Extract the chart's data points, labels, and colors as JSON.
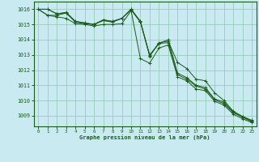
{
  "xlabel": "Graphe pression niveau de la mer (hPa)",
  "xlim": [
    -0.5,
    23.5
  ],
  "ylim": [
    1008.3,
    1016.5
  ],
  "yticks": [
    1009,
    1010,
    1011,
    1012,
    1013,
    1014,
    1015,
    1016
  ],
  "xticks": [
    0,
    1,
    2,
    3,
    4,
    5,
    6,
    7,
    8,
    9,
    10,
    11,
    12,
    13,
    14,
    15,
    16,
    17,
    18,
    19,
    20,
    21,
    22,
    23
  ],
  "background_color": "#c8eaf0",
  "grid_color": "#99ccbb",
  "line_color": "#1a5c1a",
  "series": [
    [
      1016.0,
      1016.0,
      1015.7,
      1015.8,
      1015.2,
      1015.1,
      1015.0,
      1015.3,
      1015.2,
      1015.4,
      1016.0,
      1015.2,
      1012.9,
      1013.8,
      1013.9,
      1012.5,
      1012.1,
      1011.4,
      1011.3,
      1010.5,
      1010.0,
      1009.3,
      1008.95,
      1008.7
    ],
    [
      1016.0,
      1016.0,
      1015.7,
      1015.75,
      1015.2,
      1015.1,
      1015.0,
      1015.3,
      1015.2,
      1015.4,
      1016.0,
      1015.2,
      1013.0,
      1013.75,
      1014.0,
      1011.8,
      1011.5,
      1011.0,
      1010.85,
      1010.1,
      1009.9,
      1009.25,
      1008.95,
      1008.65
    ],
    [
      1016.0,
      1015.6,
      1015.6,
      1015.75,
      1015.15,
      1015.05,
      1015.0,
      1015.25,
      1015.15,
      1015.4,
      1015.95,
      1015.15,
      1012.95,
      1013.75,
      1013.8,
      1011.7,
      1011.4,
      1010.95,
      1010.75,
      1010.05,
      1009.8,
      1009.2,
      1008.9,
      1008.6
    ],
    [
      1016.0,
      1015.6,
      1015.5,
      1015.4,
      1015.05,
      1015.0,
      1014.9,
      1015.0,
      1015.0,
      1015.05,
      1015.9,
      1012.75,
      1012.45,
      1013.45,
      1013.65,
      1011.55,
      1011.3,
      1010.75,
      1010.65,
      1009.95,
      1009.7,
      1009.1,
      1008.8,
      1008.55
    ]
  ]
}
